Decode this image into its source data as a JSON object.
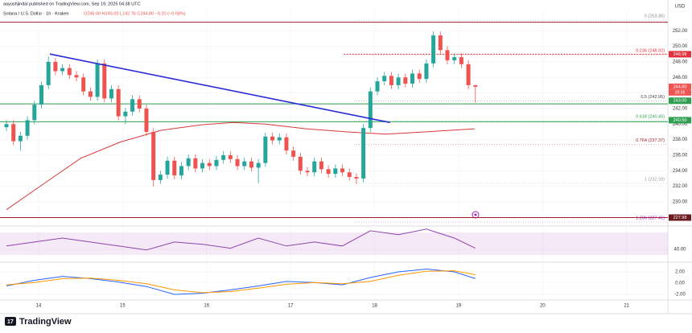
{
  "header": {
    "publisher": "aayushjindal published on TradingView.com, Sep 19, 2025 04:38 UTC",
    "symbol": "Solana / U.S. Dollar · 1h · Kraken",
    "ohlc": "O245.00 H245.00 L242.76 C244.80 −0.20 (−0.08%)"
  },
  "chart_data": {
    "type": "candlestick",
    "currency": "USD",
    "up_color": "#26a69a",
    "down_color": "#ef5350",
    "open": [
      239.6,
      240.0,
      237.8,
      238.5,
      240.5,
      242.5,
      245.0,
      248.0,
      246.8,
      247.2,
      246.3,
      246.0,
      244.2,
      243.5,
      247.8,
      243.3,
      244.5,
      241.0,
      241.6,
      243.2,
      242.0,
      239.0,
      232.8,
      233.5,
      235.3,
      233.4,
      234.6,
      235.6,
      234.3,
      235.0,
      234.6,
      235.4,
      236.0,
      235.5,
      234.6,
      235.2,
      234.4,
      235.0,
      238.4,
      237.9,
      238.3,
      236.6,
      235.8,
      234.0,
      233.8,
      235.2,
      234.2,
      233.6,
      234.3,
      233.8,
      233.2,
      233.0,
      239.5,
      244.2,
      245.5,
      246.2,
      245.0,
      246.0,
      245.2,
      246.5,
      245.8,
      247.8,
      251.4,
      249.5,
      248.2,
      248.6,
      247.7,
      245.0
    ],
    "high": [
      240.5,
      240.5,
      239.0,
      241.0,
      243.0,
      245.5,
      248.7,
      248.5,
      247.7,
      247.7,
      246.8,
      246.5,
      244.7,
      248.3,
      248.3,
      245.0,
      245.0,
      242.1,
      243.7,
      243.7,
      242.5,
      239.5,
      234.0,
      235.8,
      235.8,
      235.1,
      236.1,
      236.1,
      235.5,
      235.5,
      235.9,
      236.5,
      236.5,
      236.0,
      235.7,
      235.7,
      235.5,
      238.9,
      238.9,
      238.8,
      238.8,
      237.1,
      236.3,
      234.5,
      235.7,
      235.7,
      234.7,
      234.8,
      234.8,
      234.3,
      233.7,
      240.0,
      244.7,
      246.0,
      246.7,
      246.7,
      246.5,
      246.5,
      247.0,
      247.0,
      248.3,
      251.9,
      251.9,
      250.0,
      249.1,
      249.1,
      248.2,
      245.0
    ],
    "low": [
      239.1,
      237.3,
      236.6,
      238.0,
      240.0,
      242.0,
      244.5,
      246.3,
      246.3,
      245.8,
      245.5,
      243.7,
      243.0,
      243.0,
      242.8,
      242.8,
      240.5,
      240.0,
      241.1,
      241.5,
      238.5,
      232.0,
      232.3,
      233.0,
      232.9,
      232.9,
      234.1,
      233.8,
      233.8,
      234.1,
      234.1,
      234.9,
      235.0,
      234.1,
      234.1,
      233.9,
      232.4,
      234.5,
      237.4,
      237.4,
      236.1,
      235.3,
      233.5,
      233.3,
      233.3,
      233.7,
      233.1,
      233.1,
      233.3,
      232.7,
      232.3,
      232.5,
      239.0,
      243.7,
      245.0,
      244.5,
      244.5,
      244.7,
      244.7,
      245.3,
      245.3,
      247.3,
      249.0,
      247.7,
      247.7,
      247.2,
      244.5,
      242.76
    ],
    "close": [
      240.0,
      237.8,
      238.5,
      240.5,
      242.5,
      245.0,
      248.0,
      246.8,
      247.2,
      246.3,
      246.0,
      244.2,
      243.5,
      247.8,
      243.3,
      244.5,
      241.0,
      241.6,
      243.2,
      242.0,
      239.0,
      232.8,
      233.5,
      235.3,
      233.4,
      234.6,
      235.6,
      234.3,
      235.0,
      234.6,
      235.4,
      236.0,
      235.5,
      234.6,
      235.2,
      234.4,
      235.0,
      238.4,
      237.9,
      238.3,
      236.6,
      235.8,
      234.0,
      233.8,
      235.2,
      234.2,
      233.6,
      234.3,
      233.8,
      233.2,
      233.0,
      239.5,
      244.2,
      245.5,
      246.2,
      245.0,
      246.0,
      245.2,
      246.5,
      245.8,
      247.8,
      251.4,
      249.5,
      248.2,
      248.6,
      247.7,
      245.0,
      244.8
    ],
    "xlim": [
      -0.92,
      94.5
    ],
    "xticks": [
      {
        "value": 4.6,
        "label": "14"
      },
      {
        "value": 16.6,
        "label": "15"
      },
      {
        "value": 28.6,
        "label": "16"
      },
      {
        "value": 40.6,
        "label": "17"
      },
      {
        "value": 52.6,
        "label": "18"
      },
      {
        "value": 64.6,
        "label": "19"
      },
      {
        "value": 76.6,
        "label": "20"
      },
      {
        "value": 88.6,
        "label": "21"
      }
    ],
    "ylim": [
      227.0,
      254.4
    ],
    "yticks": [
      {
        "value": 228,
        "label": "228.00"
      },
      {
        "value": 230,
        "label": "230.00"
      },
      {
        "value": 232,
        "label": "232.00"
      },
      {
        "value": 234,
        "label": "234.00"
      },
      {
        "value": 236,
        "label": "236.00"
      },
      {
        "value": 238,
        "label": "238.00"
      },
      {
        "value": 240,
        "label": "240.00"
      },
      {
        "value": 242,
        "label": "242.00"
      },
      {
        "value": 244,
        "label": "244.00"
      },
      {
        "value": 246,
        "label": "246.00"
      },
      {
        "value": 248,
        "label": "248.00"
      },
      {
        "value": 250,
        "label": "250.00"
      },
      {
        "value": 252,
        "label": "252.00"
      }
    ],
    "ma": {
      "color": "#d83a3a",
      "x": [
        0,
        4.8,
        10.6,
        16.3,
        22.1,
        27.8,
        32.4,
        37.0,
        42.8,
        48.5,
        54.2,
        60.0,
        66.9
      ],
      "values": [
        229.0,
        232.0,
        235.6,
        237.7,
        239.2,
        239.9,
        240.2,
        240.0,
        239.4,
        239.0,
        238.7,
        239.0,
        239.4
      ]
    },
    "trendline": {
      "color": "#2a2ad6",
      "x": [
        6.2,
        54.8
      ],
      "values": [
        249.0,
        240.2
      ]
    },
    "levels": [
      {
        "value": 253.1,
        "color": "#a1202a"
      },
      {
        "value": 248.98,
        "color": "#e0323c",
        "x": 48.2
      },
      {
        "value": 242.6,
        "color": "#2e9e4f"
      },
      {
        "value": 240.3,
        "color": "#2e9e4f"
      },
      {
        "value": 227.98,
        "color": "#a1202a"
      }
    ],
    "price_tags": [
      {
        "value": 248.98,
        "label": "248.98",
        "color": "#e0323c"
      },
      {
        "value": 244.8,
        "label": "244.80",
        "color": "#ef5350"
      },
      {
        "value": 243.0,
        "label": "243.00",
        "color": "#2e9e4f"
      },
      {
        "value": 240.5,
        "label": "240.50",
        "color": "#2e9e4f"
      },
      {
        "value": 227.98,
        "label": "227.98",
        "color": "#6b1a20"
      }
    ],
    "countdown": "29:36",
    "fib": [
      {
        "value": 253.36,
        "label": "0 (253.36)",
        "color": "#888888"
      },
      {
        "value": 248.92,
        "label": "0.236 (248.92)",
        "color": "#e0323c"
      },
      {
        "value": 242.95,
        "label": "0.5 (242.95)",
        "color": "#444444"
      },
      {
        "value": 240.45,
        "label": "0.618 (240.45)",
        "color": "#2e9e4f"
      },
      {
        "value": 237.37,
        "label": "0.764 (237.37)",
        "color": "#a1202a"
      },
      {
        "value": 232.39,
        "label": "1 (232.39)",
        "color": "#999999"
      },
      {
        "value": 227.41,
        "label": "1.236 (227.41)",
        "color": "#9c27b0"
      }
    ],
    "rsi": {
      "color": "#8e44ad",
      "band": [
        30,
        70
      ],
      "ylim": [
        20,
        80
      ],
      "yticks": [
        {
          "value": 40,
          "label": "40.00"
        }
      ],
      "x": [
        0,
        4,
        8,
        12,
        16,
        20,
        24,
        28,
        32,
        36,
        40,
        44,
        48,
        52,
        56,
        60,
        64,
        67
      ],
      "values": [
        46,
        53,
        60,
        53,
        46,
        39,
        53,
        49,
        42,
        60,
        46,
        53,
        46,
        73,
        66,
        76,
        60,
        42
      ]
    },
    "macd": {
      "ylim": [
        -2.86,
        3.43
      ],
      "yticks": [
        {
          "value": 2,
          "label": "2.00"
        },
        {
          "value": 0,
          "label": "0.00"
        },
        {
          "value": -2,
          "label": "-2.00"
        }
      ],
      "x": [
        0,
        4,
        8,
        12,
        16,
        20,
        24,
        28,
        32,
        36,
        40,
        44,
        48,
        52,
        56,
        60,
        64,
        67
      ],
      "series": [
        {
          "color": "#2962ff",
          "values": [
            -0.5,
            0.5,
            1.2,
            0.8,
            0.2,
            -0.6,
            -2.0,
            -1.8,
            -1.2,
            -0.5,
            0.3,
            0.1,
            -0.3,
            1.0,
            2.0,
            2.5,
            2.0,
            0.8
          ]
        },
        {
          "color": "#ff9800",
          "values": [
            -0.3,
            0.1,
            0.8,
            0.9,
            0.5,
            -0.1,
            -1.2,
            -1.7,
            -1.5,
            -0.9,
            -0.2,
            0.1,
            -0.1,
            0.3,
            1.4,
            2.1,
            2.2,
            1.5
          ]
        }
      ]
    }
  },
  "footer": {
    "logo": "TradingView"
  }
}
